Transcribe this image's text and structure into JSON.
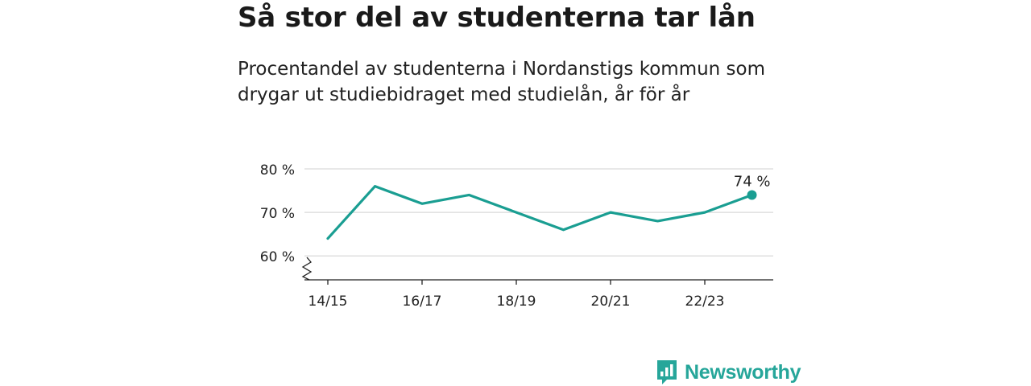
{
  "title": "Så stor del av studenterna tar lån",
  "subtitle": "Procentandel av studenterna i Nordanstigs kommun som drygar ut studiebidraget med studielån, år för år",
  "brand": {
    "name": "Newsworthy",
    "icon": "bar-chart-speech-bubble-icon",
    "color": "#26a69a"
  },
  "chart_data": {
    "type": "line",
    "color": "#1a9e92",
    "x": [
      "14/15",
      "15/16",
      "16/17",
      "17/18",
      "18/19",
      "19/20",
      "20/21",
      "21/22",
      "22/23",
      "23/24"
    ],
    "series": [
      {
        "values": [
          64,
          76,
          72,
          74,
          70,
          66,
          70,
          68,
          70,
          74
        ]
      }
    ],
    "x_tick_labels": [
      "14/15",
      "16/17",
      "18/19",
      "20/21",
      "22/23"
    ],
    "y_ticks": [
      60,
      70,
      80
    ],
    "y_tick_labels": [
      "60 %",
      "70 %",
      "80 %"
    ],
    "ylim": [
      54.5,
      80
    ],
    "grid": true,
    "axis_break": true,
    "last_point_label": "74 %"
  }
}
